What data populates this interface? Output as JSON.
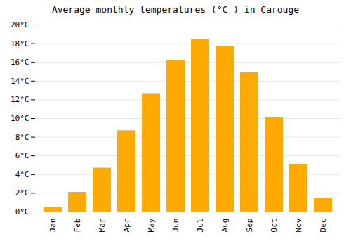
{
  "chart_data": {
    "type": "bar",
    "title": "Average monthly temperatures (°C ) in Carouge",
    "categories": [
      "Jan",
      "Feb",
      "Mar",
      "Apr",
      "May",
      "Jun",
      "Jul",
      "Aug",
      "Sep",
      "Oct",
      "Nov",
      "Dec"
    ],
    "values": [
      0.5,
      2.1,
      4.7,
      8.7,
      12.6,
      16.2,
      18.5,
      17.7,
      14.9,
      10.1,
      5.1,
      1.5
    ],
    "color": "#FFAA00",
    "ylim": [
      0,
      20
    ],
    "yticks": [
      {
        "value": 0,
        "label": "0°C"
      },
      {
        "value": 2,
        "label": "2°C"
      },
      {
        "value": 4,
        "label": "4°C"
      },
      {
        "value": 6,
        "label": "6°C"
      },
      {
        "value": 8,
        "label": "8°C"
      },
      {
        "value": 10,
        "label": "10°C"
      },
      {
        "value": 12,
        "label": "12°C"
      },
      {
        "value": 14,
        "label": "14°C"
      },
      {
        "value": 16,
        "label": "16°C"
      },
      {
        "value": 18,
        "label": "18°C"
      },
      {
        "value": 20,
        "label": "20°C"
      }
    ],
    "grid": true
  }
}
